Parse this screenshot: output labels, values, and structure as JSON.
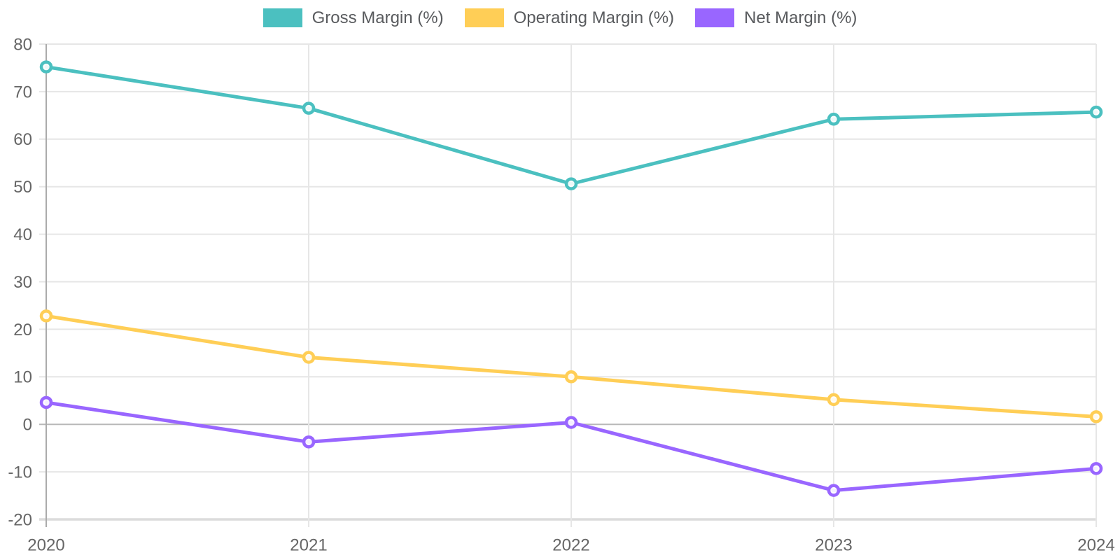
{
  "chart_data": {
    "type": "line",
    "x": [
      "2020",
      "2021",
      "2022",
      "2023",
      "2024"
    ],
    "series": [
      {
        "name": "Gross Margin (%)",
        "color": "#4BC0C0",
        "values": [
          75.2,
          66.5,
          50.6,
          64.2,
          65.7
        ]
      },
      {
        "name": "Operating Margin (%)",
        "color": "#FFCE56",
        "values": [
          22.8,
          14.1,
          10.0,
          5.2,
          1.6
        ]
      },
      {
        "name": "Net Margin (%)",
        "color": "#9966FF",
        "values": [
          4.6,
          -3.7,
          0.4,
          -13.9,
          -9.3
        ]
      }
    ],
    "title": "",
    "xlabel": "",
    "ylabel": "",
    "ylim": [
      -20,
      80
    ],
    "y_ticks": [
      80,
      70,
      60,
      50,
      40,
      30,
      20,
      10,
      0,
      -10,
      -20
    ],
    "grid": true,
    "legend_position": "top",
    "marker": "circle-open",
    "axis_text_color": "#666666",
    "grid_color": "#e6e6e6",
    "zero_line_color": "#b8b8b8",
    "axis_line_color": "#ababab",
    "bottom_border_color": "#dcdcdc"
  }
}
